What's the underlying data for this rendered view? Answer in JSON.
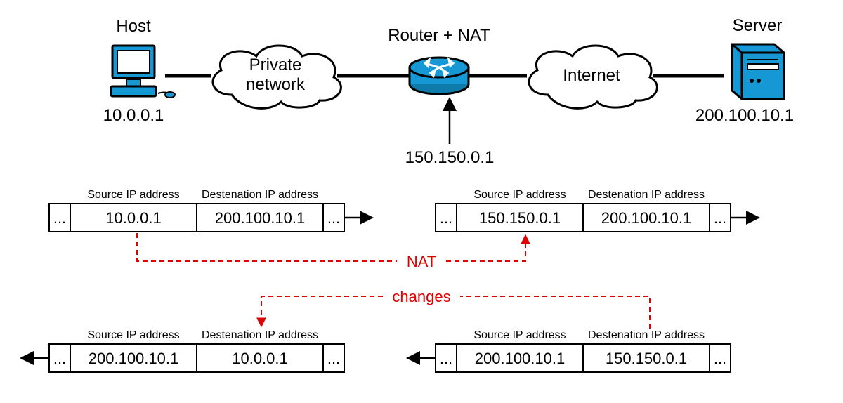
{
  "diagram": {
    "type": "network",
    "background_color": "#ffffff",
    "accent_color": "#1698d5",
    "line_color": "#000000",
    "red_color": "#e00000",
    "title_fontsize": 24,
    "header_fontsize": 16,
    "cell_fontsize": 22,
    "nodes": {
      "host": {
        "label": "Host",
        "ip": "10.0.0.1"
      },
      "cloud1": {
        "label_top": "Private",
        "label_bot": "network"
      },
      "router": {
        "label": "Router + NAT",
        "ip": "150.150.0.1"
      },
      "cloud2": {
        "label": "Internet"
      },
      "server": {
        "label": "Server",
        "ip": "200.100.10.1"
      }
    },
    "packet_headers": {
      "src": "Source IP address",
      "dst": "Destenation IP address"
    },
    "packets": {
      "top_left": {
        "src": "10.0.0.1",
        "dst": "200.100.10.1"
      },
      "top_right": {
        "src": "150.150.0.1",
        "dst": "200.100.10.1"
      },
      "bot_left": {
        "src": "200.100.10.1",
        "dst": "10.0.0.1"
      },
      "bot_right": {
        "src": "200.100.10.1",
        "dst": "150.150.0.1"
      }
    },
    "center_labels": {
      "nat": "NAT",
      "changes": "changes"
    },
    "ellipsis": "..."
  }
}
